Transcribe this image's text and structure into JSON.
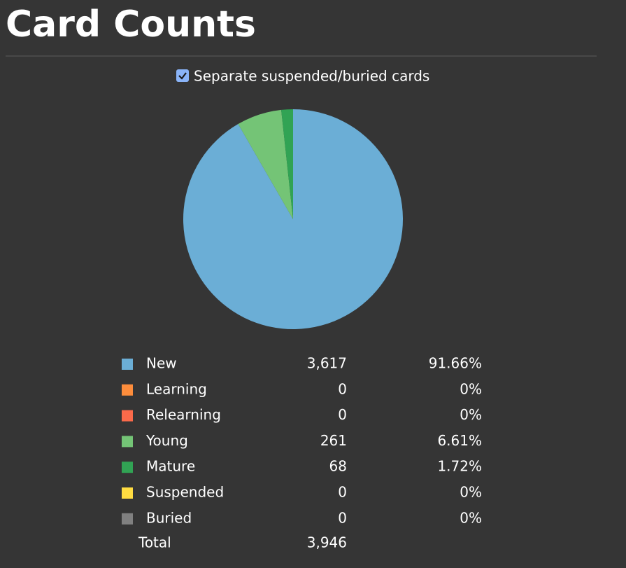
{
  "chart_data": {
    "type": "pie",
    "title": "Card Counts",
    "checkbox_label": "Separate suspended/buried cards",
    "checkbox_checked": true,
    "categories": [
      "New",
      "Learning",
      "Relearning",
      "Young",
      "Mature",
      "Suspended",
      "Buried"
    ],
    "colors": [
      "#6baed6",
      "#fd8d3c",
      "#fb6a4a",
      "#74c476",
      "#31a354",
      "#ffdc41",
      "#808080"
    ],
    "values": [
      3617,
      0,
      0,
      261,
      68,
      0,
      0
    ],
    "value_labels": [
      "3,617",
      "0",
      "0",
      "261",
      "68",
      "0",
      "0"
    ],
    "percentages": [
      91.66,
      0,
      0,
      6.61,
      1.72,
      0,
      0
    ],
    "percentage_labels": [
      "91.66%",
      "0%",
      "0%",
      "6.61%",
      "1.72%",
      "0%",
      "0%"
    ],
    "total_label": "Total",
    "total": {
      "value": 3946,
      "label": "3,946"
    }
  }
}
